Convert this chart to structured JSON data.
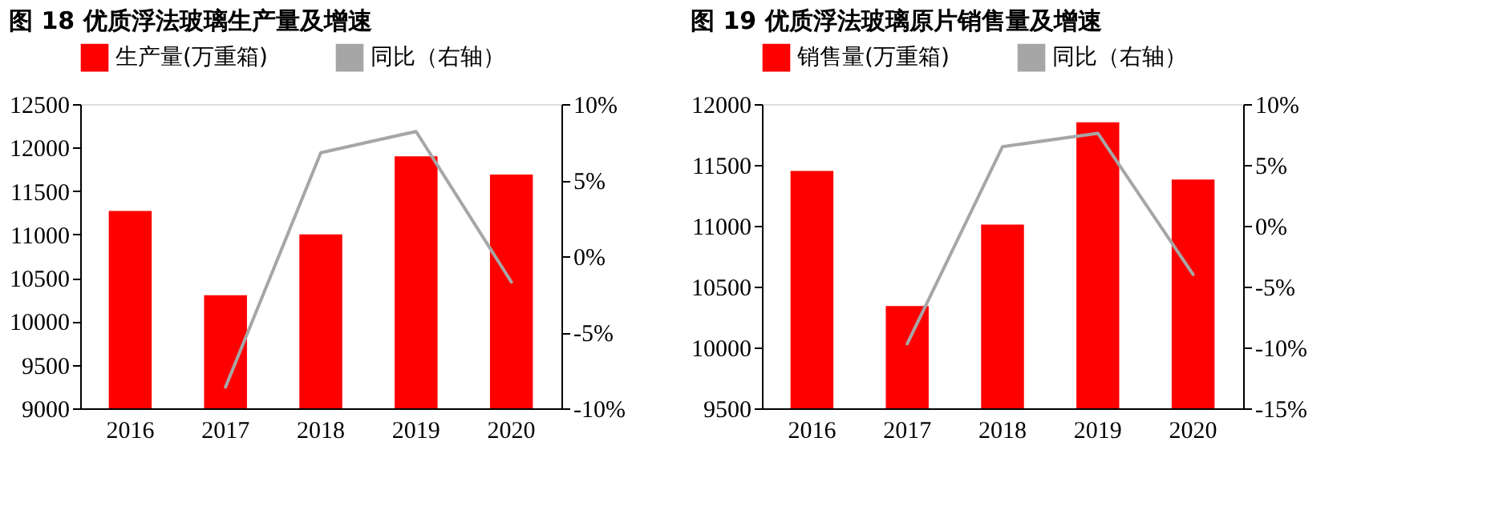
{
  "chart_data": [
    {
      "type": "bar",
      "title": "图 18 优质浮法玻璃生产量及增速",
      "categories": [
        "2016",
        "2017",
        "2018",
        "2019",
        "2020"
      ],
      "series": [
        {
          "name": "生产量(万重箱)",
          "type": "bar",
          "color": "#ff0000",
          "values": [
            11270,
            10300,
            11000,
            11900,
            11690
          ]
        },
        {
          "name": "同比（右轴）",
          "type": "line",
          "axis": "y2",
          "color": "#a6a6a6",
          "values": [
            null,
            -8.6,
            6.8,
            8.2,
            -1.7
          ]
        }
      ],
      "ylim": [
        9000,
        12500
      ],
      "yticks": [
        9000,
        9500,
        10000,
        10500,
        11000,
        11500,
        12000,
        12500
      ],
      "y2lim": [
        -10,
        10
      ],
      "y2ticks": [
        {
          "value": -10,
          "label": "-10%"
        },
        {
          "value": -5,
          "label": "-5%"
        },
        {
          "value": 0,
          "label": "0%"
        },
        {
          "value": 5,
          "label": "5%"
        },
        {
          "value": 10,
          "label": "10%"
        }
      ],
      "legend": "top",
      "grid": false
    },
    {
      "type": "bar",
      "title": "图 19 优质浮法玻璃原片销售量及增速",
      "categories": [
        "2016",
        "2017",
        "2018",
        "2019",
        "2020"
      ],
      "series": [
        {
          "name": "销售量(万重箱)",
          "type": "bar",
          "color": "#ff0000",
          "values": [
            11450,
            10340,
            11010,
            11850,
            11380
          ]
        },
        {
          "name": "同比（右轴）",
          "type": "line",
          "axis": "y2",
          "color": "#a6a6a6",
          "values": [
            null,
            -9.7,
            6.5,
            7.6,
            -4.0
          ]
        }
      ],
      "ylim": [
        9500,
        12000
      ],
      "yticks": [
        9500,
        10000,
        10500,
        11000,
        11500,
        12000
      ],
      "y2lim": [
        -15,
        10
      ],
      "y2ticks": [
        {
          "value": -15,
          "label": "-15%"
        },
        {
          "value": -10,
          "label": "-10%"
        },
        {
          "value": -5,
          "label": "-5%"
        },
        {
          "value": 0,
          "label": "0%"
        },
        {
          "value": 5,
          "label": "5%"
        },
        {
          "value": 10,
          "label": "10%"
        }
      ],
      "legend": "top",
      "grid": false
    }
  ]
}
